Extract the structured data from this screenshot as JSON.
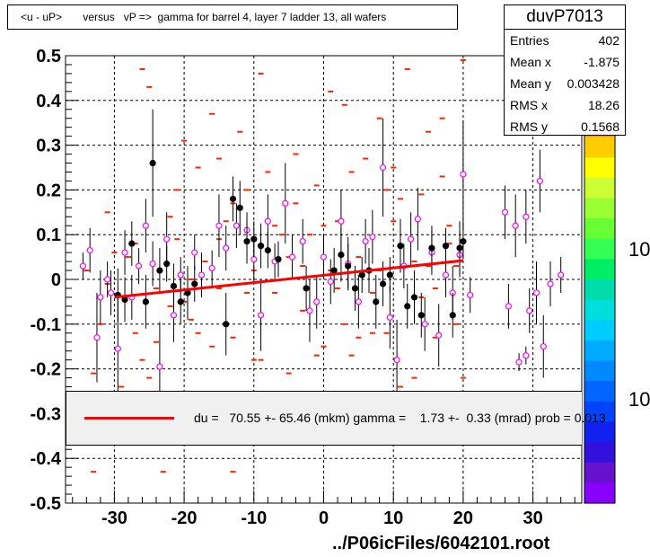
{
  "title": "<u - uP>       versus   vP =>  gamma for barrel 4, layer 7 ladder 13, all wafers",
  "stats": {
    "name": "duvP7013",
    "rows": [
      {
        "label": "Entries",
        "value": "402"
      },
      {
        "label": "Mean x",
        "value": "-1.875"
      },
      {
        "label": "Mean y",
        "value": "0.003428"
      },
      {
        "label": "RMS x",
        "value": "18.26"
      },
      {
        "label": "RMS y",
        "value": "0.1568"
      }
    ]
  },
  "fit": {
    "text": "du =   70.55 +- 65.46 (mkm) gamma =    1.73 +-  0.33 (mrad) prob = 0.013"
  },
  "file_label": "../P06icFiles/6042101.root",
  "palette_labels": [
    "10",
    "10"
  ],
  "colors": {
    "fit_line": "#ff0000",
    "marker_open": "#ff00ff",
    "marker_filled": "#000000",
    "scatter": "#ff2200",
    "fit_box": "#f0f0f0"
  },
  "chart_data": {
    "type": "scatter",
    "xlim": [
      -37,
      37
    ],
    "ylim": [
      -0.5,
      0.5
    ],
    "x_ticks": [
      "-30",
      "-20",
      "-10",
      "0",
      "10",
      "20",
      "30"
    ],
    "x_tick_values": [
      -30,
      -20,
      -10,
      0,
      10,
      20,
      30
    ],
    "y_ticks": [
      "-0.5",
      "-0.4",
      "-0.3",
      "-0.2",
      "-0.1",
      "0",
      "0.1",
      "0.2",
      "0.3",
      "0.4",
      "0.5"
    ],
    "y_tick_values": [
      -0.5,
      -0.4,
      -0.3,
      -0.2,
      -0.1,
      0,
      0.1,
      0.2,
      0.3,
      0.4,
      0.5
    ],
    "grid": true,
    "fit_line": {
      "x": [
        -30,
        20
      ],
      "y": [
        -0.04,
        0.042
      ]
    },
    "profile_open": [
      {
        "x": -34.5,
        "y": 0.03,
        "e": 0.03
      },
      {
        "x": -33.5,
        "y": 0.065,
        "e": 0.05
      },
      {
        "x": -32.5,
        "y": -0.13,
        "e": 0.1
      },
      {
        "x": -32,
        "y": -0.04,
        "e": 0.06
      },
      {
        "x": -31,
        "y": 0.0,
        "e": 0.04
      },
      {
        "x": -30.5,
        "y": -0.03,
        "e": 0.05
      },
      {
        "x": -29.5,
        "y": -0.155,
        "e": 0.12
      },
      {
        "x": -28.5,
        "y": 0.06,
        "e": 0.05
      },
      {
        "x": -27.5,
        "y": -0.04,
        "e": 0.05
      },
      {
        "x": -26.5,
        "y": 0.03,
        "e": 0.04
      },
      {
        "x": -25.5,
        "y": 0.12,
        "e": 0.06
      },
      {
        "x": -24.5,
        "y": 0.035,
        "e": 0.05
      },
      {
        "x": -23.5,
        "y": -0.195,
        "e": 0.1
      },
      {
        "x": -22.5,
        "y": 0.09,
        "e": 0.06
      },
      {
        "x": -21.5,
        "y": -0.08,
        "e": 0.06
      },
      {
        "x": -20.5,
        "y": 0.01,
        "e": 0.04
      },
      {
        "x": -19.5,
        "y": -0.03,
        "e": 0.05
      },
      {
        "x": -18.5,
        "y": 0.06,
        "e": 0.04
      },
      {
        "x": -17.5,
        "y": 0.01,
        "e": 0.05
      },
      {
        "x": -16,
        "y": 0.025,
        "e": 0.04
      },
      {
        "x": -15,
        "y": 0.12,
        "e": 0.07
      },
      {
        "x": -14,
        "y": 0.07,
        "e": 0.05
      },
      {
        "x": -12.5,
        "y": 0.12,
        "e": 0.05
      },
      {
        "x": -11,
        "y": 0.11,
        "e": 0.04
      },
      {
        "x": -10,
        "y": 0.045,
        "e": 0.05
      },
      {
        "x": -9,
        "y": -0.08,
        "e": 0.08
      },
      {
        "x": -8,
        "y": 0.13,
        "e": 0.06
      },
      {
        "x": -7,
        "y": 0.04,
        "e": 0.04
      },
      {
        "x": -5.5,
        "y": 0.17,
        "e": 0.09
      },
      {
        "x": -4.5,
        "y": 0.05,
        "e": 0.05
      },
      {
        "x": -3,
        "y": 0.085,
        "e": 0.05
      },
      {
        "x": -2,
        "y": -0.07,
        "e": 0.07
      },
      {
        "x": -1,
        "y": -0.05,
        "e": 0.06
      },
      {
        "x": 0,
        "y": 0.05,
        "e": 0.05
      },
      {
        "x": 1,
        "y": -0.005,
        "e": 0.05
      },
      {
        "x": 2.5,
        "y": 0.13,
        "e": 0.07
      },
      {
        "x": 3.5,
        "y": 0.035,
        "e": 0.06
      },
      {
        "x": 5,
        "y": -0.05,
        "e": 0.06
      },
      {
        "x": 6,
        "y": 0.085,
        "e": 0.05
      },
      {
        "x": 7,
        "y": 0.095,
        "e": 0.06
      },
      {
        "x": 8.5,
        "y": 0.25,
        "e": 0.11
      },
      {
        "x": 9.5,
        "y": -0.085,
        "e": 0.07
      },
      {
        "x": 10.5,
        "y": -0.18,
        "e": 0.09
      },
      {
        "x": 11.5,
        "y": 0.03,
        "e": 0.05
      },
      {
        "x": 12.5,
        "y": 0.09,
        "e": 0.06
      },
      {
        "x": 13.5,
        "y": 0.135,
        "e": 0.07
      },
      {
        "x": 14.5,
        "y": -0.1,
        "e": 0.06
      },
      {
        "x": 15.5,
        "y": 0.06,
        "e": 0.05
      },
      {
        "x": 16.5,
        "y": -0.125,
        "e": 0.07
      },
      {
        "x": 17.5,
        "y": 0.01,
        "e": 0.05
      },
      {
        "x": 18.5,
        "y": -0.03,
        "e": 0.06
      },
      {
        "x": 19.5,
        "y": 0.055,
        "e": 0.05
      },
      {
        "x": 20,
        "y": 0.235,
        "e": 0.12
      },
      {
        "x": 21,
        "y": -0.035,
        "e": 0.04
      },
      {
        "x": 26,
        "y": 0.15,
        "e": 0.06
      },
      {
        "x": 26.5,
        "y": -0.06,
        "e": 0.05
      },
      {
        "x": 27.5,
        "y": 0.12,
        "e": 0.07
      },
      {
        "x": 28,
        "y": -0.185,
        "e": 0.02
      },
      {
        "x": 29,
        "y": 0.14,
        "e": 0.06
      },
      {
        "x": 29.5,
        "y": -0.07,
        "e": 0.05
      },
      {
        "x": 30.5,
        "y": -0.03,
        "e": 0.07
      },
      {
        "x": 31,
        "y": 0.22,
        "e": 0.07
      },
      {
        "x": 31.5,
        "y": -0.15,
        "e": 0.07
      },
      {
        "x": 32.5,
        "y": -0.01,
        "e": 0.05
      },
      {
        "x": 34,
        "y": 0.01,
        "e": 0.04
      },
      {
        "x": 29,
        "y": -0.17,
        "e": 0.02
      }
    ],
    "profile_filled": [
      {
        "x": -29.5,
        "y": -0.035,
        "e": 0.06
      },
      {
        "x": -28.5,
        "y": -0.045,
        "e": 0.05
      },
      {
        "x": -27.5,
        "y": 0.08,
        "e": 0.05
      },
      {
        "x": -25.5,
        "y": -0.05,
        "e": 0.06
      },
      {
        "x": -24.5,
        "y": 0.26,
        "e": 0.12
      },
      {
        "x": -23.5,
        "y": 0.02,
        "e": 0.05
      },
      {
        "x": -22.5,
        "y": 0.035,
        "e": 0.04
      },
      {
        "x": -21.5,
        "y": -0.015,
        "e": 0.05
      },
      {
        "x": -20.5,
        "y": -0.05,
        "e": 0.05
      },
      {
        "x": -19.5,
        "y": -0.03,
        "e": 0.06
      },
      {
        "x": -18.5,
        "y": -0.01,
        "e": 0.04
      },
      {
        "x": -14,
        "y": -0.1,
        "e": 0.07
      },
      {
        "x": -13,
        "y": 0.18,
        "e": 0.05
      },
      {
        "x": -12,
        "y": 0.16,
        "e": 0.06
      },
      {
        "x": -11,
        "y": 0.085,
        "e": 0.05
      },
      {
        "x": -10,
        "y": 0.09,
        "e": 0.04
      },
      {
        "x": -9,
        "y": 0.075,
        "e": 0.05
      },
      {
        "x": -8,
        "y": 0.065,
        "e": 0.04
      },
      {
        "x": -6.5,
        "y": 0.045,
        "e": 0.04
      },
      {
        "x": -2.5,
        "y": -0.02,
        "e": 0.05
      },
      {
        "x": 1.5,
        "y": 0.02,
        "e": 0.05
      },
      {
        "x": 2.5,
        "y": 0.055,
        "e": 0.06
      },
      {
        "x": 3.5,
        "y": 0.03,
        "e": 0.05
      },
      {
        "x": 4.5,
        "y": -0.02,
        "e": 0.05
      },
      {
        "x": 5.5,
        "y": 0.01,
        "e": 0.04
      },
      {
        "x": 6.5,
        "y": 0.02,
        "e": 0.05
      },
      {
        "x": 7.5,
        "y": -0.05,
        "e": 0.06
      },
      {
        "x": 8.5,
        "y": -0.01,
        "e": 0.05
      },
      {
        "x": 9.5,
        "y": 0.01,
        "e": 0.04
      },
      {
        "x": 11,
        "y": 0.075,
        "e": 0.06
      },
      {
        "x": 12,
        "y": -0.06,
        "e": 0.05
      },
      {
        "x": 13,
        "y": -0.04,
        "e": 0.06
      },
      {
        "x": 14,
        "y": -0.08,
        "e": 0.05
      },
      {
        "x": 15.5,
        "y": 0.07,
        "e": 0.05
      },
      {
        "x": 17.5,
        "y": 0.075,
        "e": 0.04
      },
      {
        "x": 18.5,
        "y": -0.08,
        "e": 0.05
      },
      {
        "x": 19.5,
        "y": 0.07,
        "e": 0.06
      },
      {
        "x": 20,
        "y": 0.085,
        "e": 0.04
      }
    ],
    "scatter_points": [
      [
        -34,
        0.02
      ],
      [
        -33,
        -0.21
      ],
      [
        -32,
        -0.1
      ],
      [
        -31,
        0.15
      ],
      [
        -30,
        0.06
      ],
      [
        -29,
        -0.24
      ],
      [
        -28,
        0.05
      ],
      [
        -27,
        -0.12
      ],
      [
        -26,
        0.47
      ],
      [
        -26,
        -0.18
      ],
      [
        -25,
        0.43
      ],
      [
        -24,
        -0.14
      ],
      [
        -23,
        -0.43
      ],
      [
        -22,
        0.14
      ],
      [
        -21,
        0.2
      ],
      [
        -20,
        -0.05
      ],
      [
        -20,
        0.31
      ],
      [
        -19,
        0.0
      ],
      [
        -18,
        -0.12
      ],
      [
        -18,
        0.25
      ],
      [
        -17,
        0.04
      ],
      [
        -16,
        -0.15
      ],
      [
        -15,
        0.09
      ],
      [
        -14,
        0.13
      ],
      [
        -13,
        -0.13
      ],
      [
        -12,
        0.33
      ],
      [
        -11,
        -0.03
      ],
      [
        -10,
        0.02
      ],
      [
        -9,
        -0.18
      ],
      [
        -8,
        0.24
      ],
      [
        -7,
        0.12
      ],
      [
        -6,
        -0.29
      ],
      [
        -5,
        0.05
      ],
      [
        -4,
        0.28
      ],
      [
        -3,
        -0.07
      ],
      [
        -2,
        0.1
      ],
      [
        -1,
        0.21
      ],
      [
        0,
        -0.15
      ],
      [
        1,
        0.02
      ],
      [
        2,
        -0.02
      ],
      [
        3,
        -0.1
      ],
      [
        3,
        0.39
      ],
      [
        4,
        0.24
      ],
      [
        5,
        -0.13
      ],
      [
        6,
        0.27
      ],
      [
        7,
        -0.12
      ],
      [
        8,
        0.36
      ],
      [
        9,
        -0.12
      ],
      [
        10,
        0.13
      ],
      [
        11,
        -0.24
      ],
      [
        12,
        0.47
      ],
      [
        13,
        -0.22
      ],
      [
        14,
        0.19
      ],
      [
        15,
        0.03
      ],
      [
        16,
        -0.02
      ],
      [
        17,
        0.36
      ],
      [
        18,
        0.12
      ],
      [
        19,
        -0.1
      ],
      [
        20,
        0.49
      ],
      [
        20,
        -0.22
      ],
      [
        -33,
        -0.43
      ],
      [
        -27,
        0.08
      ],
      [
        -24,
        -0.02
      ],
      [
        -19,
        -0.09
      ],
      [
        -16,
        0.37
      ],
      [
        -13,
        0.17
      ],
      [
        -10,
        -0.18
      ],
      [
        -7,
        -0.03
      ],
      [
        -4,
        0.17
      ],
      [
        -1,
        -0.17
      ],
      [
        2,
        0.13
      ],
      [
        5,
        0.05
      ],
      [
        8,
        0.02
      ],
      [
        11,
        0.18
      ],
      [
        14,
        -0.04
      ],
      [
        17,
        0.23
      ],
      [
        19,
        0.03
      ],
      [
        -31,
        -0.01
      ],
      [
        -22,
        -0.06
      ],
      [
        -15,
        -0.02
      ],
      [
        -11,
        0.2
      ],
      [
        -6,
        0.1
      ],
      [
        -3,
        0.03
      ],
      [
        0,
        0.12
      ],
      [
        4,
        -0.17
      ],
      [
        7,
        -0.03
      ],
      [
        10,
        0.25
      ],
      [
        13,
        0.04
      ],
      [
        16,
        -0.13
      ],
      [
        18,
        0.08
      ],
      [
        -25,
        -0.22
      ],
      [
        -15,
        0.27
      ],
      [
        -5,
        -0.21
      ],
      [
        6,
        -0.31
      ],
      [
        15,
        0.33
      ],
      [
        -13,
        -0.43
      ],
      [
        9,
        0.2
      ],
      [
        -9,
        0.46
      ],
      [
        1,
        0.42
      ],
      [
        -21,
        0.09
      ]
    ]
  }
}
